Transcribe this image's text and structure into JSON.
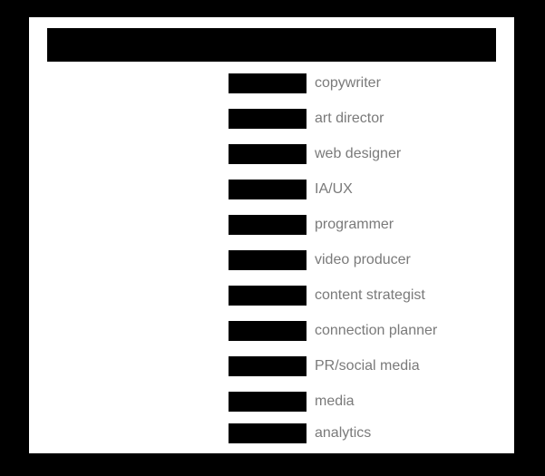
{
  "colors": {
    "background": "#000000",
    "panel": "#ffffff",
    "bar": "#000000",
    "label": "#7a7a7a"
  },
  "roles": [
    {
      "label": "copywriter"
    },
    {
      "label": "art director"
    },
    {
      "label": "web designer"
    },
    {
      "label": "IA/UX"
    },
    {
      "label": "programmer"
    },
    {
      "label": "video producer"
    },
    {
      "label": "content strategist"
    },
    {
      "label": "connection planner"
    },
    {
      "label": "PR/social media"
    },
    {
      "label": "media"
    },
    {
      "label": "analytics"
    }
  ]
}
